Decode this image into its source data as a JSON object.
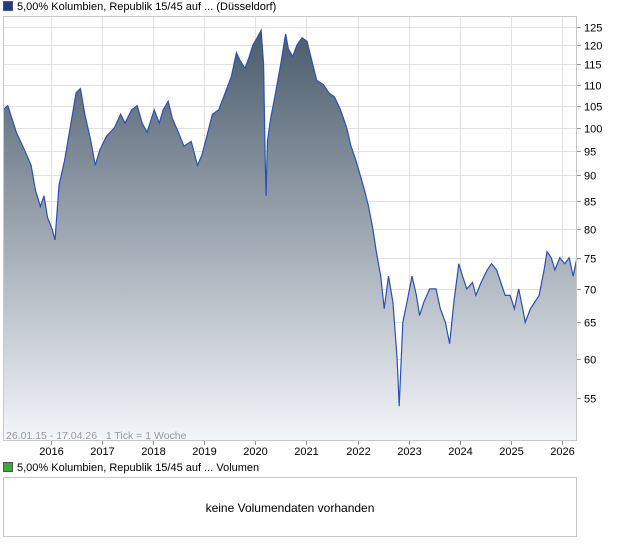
{
  "price_legend": {
    "label": "5,00% Kolumbien, Republik 15/45 auf ... (Düsseldorf)",
    "color": "#1f3b8a"
  },
  "volume_legend": {
    "label": "5,00% Kolumbien, Republik 15/45 auf ... Volumen",
    "color": "#3aa83a"
  },
  "volume_panel": {
    "message": "keine Volumendaten vorhanden"
  },
  "chart_data": {
    "type": "area",
    "series": [
      {
        "name": "5,00% Kolumbien, Republik 15/45 auf ... (Düsseldorf)",
        "line_color": "#2a50b8",
        "fill_top": "#4a5b6b",
        "fill_bottom": "#f4f6fa",
        "points": [
          [
            "2015-01-26",
            104
          ],
          [
            "2015-03-01",
            105
          ],
          [
            "2015-05-01",
            99
          ],
          [
            "2015-07-01",
            95
          ],
          [
            "2015-08-15",
            92
          ],
          [
            "2015-09-15",
            87
          ],
          [
            "2015-10-20",
            84
          ],
          [
            "2015-11-15",
            86
          ],
          [
            "2015-12-10",
            82
          ],
          [
            "2016-01-10",
            80
          ],
          [
            "2016-02-01",
            78
          ],
          [
            "2016-03-01",
            88
          ],
          [
            "2016-04-10",
            93
          ],
          [
            "2016-05-20",
            100
          ],
          [
            "2016-07-01",
            108
          ],
          [
            "2016-08-01",
            109
          ],
          [
            "2016-09-01",
            103
          ],
          [
            "2016-10-15",
            97
          ],
          [
            "2016-11-15",
            92
          ],
          [
            "2016-12-15",
            95
          ],
          [
            "2017-02-01",
            98
          ],
          [
            "2017-04-01",
            100
          ],
          [
            "2017-05-15",
            103
          ],
          [
            "2017-06-15",
            101
          ],
          [
            "2017-08-01",
            104
          ],
          [
            "2017-09-10",
            105
          ],
          [
            "2017-10-15",
            101
          ],
          [
            "2017-11-20",
            99
          ],
          [
            "2018-01-10",
            104
          ],
          [
            "2018-02-15",
            101
          ],
          [
            "2018-03-15",
            104
          ],
          [
            "2018-04-20",
            106
          ],
          [
            "2018-05-20",
            102
          ],
          [
            "2018-07-01",
            99
          ],
          [
            "2018-08-10",
            96
          ],
          [
            "2018-10-01",
            97
          ],
          [
            "2018-11-15",
            92
          ],
          [
            "2018-12-15",
            94
          ],
          [
            "2019-01-20",
            98
          ],
          [
            "2019-03-01",
            103
          ],
          [
            "2019-04-15",
            104
          ],
          [
            "2019-06-01",
            108
          ],
          [
            "2019-07-15",
            112
          ],
          [
            "2019-08-20",
            118
          ],
          [
            "2019-09-15",
            116
          ],
          [
            "2019-10-20",
            114
          ],
          [
            "2019-11-20",
            117
          ],
          [
            "2019-12-15",
            120
          ],
          [
            "2020-01-15",
            122
          ],
          [
            "2020-02-12",
            124
          ],
          [
            "2020-03-01",
            115
          ],
          [
            "2020-03-12",
            94
          ],
          [
            "2020-03-19",
            86
          ],
          [
            "2020-03-28",
            97
          ],
          [
            "2020-04-20",
            102
          ],
          [
            "2020-05-20",
            107
          ],
          [
            "2020-07-01",
            115
          ],
          [
            "2020-08-05",
            123
          ],
          [
            "2020-08-25",
            119
          ],
          [
            "2020-09-25",
            117
          ],
          [
            "2020-10-25",
            120
          ],
          [
            "2020-12-01",
            122
          ],
          [
            "2021-01-05",
            121
          ],
          [
            "2021-02-01",
            117
          ],
          [
            "2021-03-15",
            111
          ],
          [
            "2021-05-01",
            110
          ],
          [
            "2021-06-10",
            108
          ],
          [
            "2021-07-20",
            107
          ],
          [
            "2021-09-01",
            104
          ],
          [
            "2021-10-15",
            100
          ],
          [
            "2021-11-15",
            96
          ],
          [
            "2021-12-20",
            93
          ],
          [
            "2022-01-20",
            90
          ],
          [
            "2022-02-20",
            87
          ],
          [
            "2022-03-20",
            84
          ],
          [
            "2022-04-20",
            80
          ],
          [
            "2022-05-15",
            76
          ],
          [
            "2022-06-15",
            72
          ],
          [
            "2022-07-10",
            67
          ],
          [
            "2022-08-10",
            72
          ],
          [
            "2022-09-10",
            68
          ],
          [
            "2022-10-10",
            60
          ],
          [
            "2022-10-25",
            54
          ],
          [
            "2022-11-20",
            65
          ],
          [
            "2022-12-20",
            68
          ],
          [
            "2023-01-25",
            72
          ],
          [
            "2023-02-25",
            69
          ],
          [
            "2023-03-20",
            66
          ],
          [
            "2023-04-20",
            68
          ],
          [
            "2023-06-01",
            70
          ],
          [
            "2023-07-15",
            70
          ],
          [
            "2023-08-15",
            67
          ],
          [
            "2023-09-20",
            65
          ],
          [
            "2023-10-20",
            62
          ],
          [
            "2023-11-20",
            68
          ],
          [
            "2023-12-25",
            74
          ],
          [
            "2024-01-20",
            72
          ],
          [
            "2024-02-20",
            70
          ],
          [
            "2024-04-01",
            71
          ],
          [
            "2024-04-25",
            69
          ],
          [
            "2024-06-01",
            71
          ],
          [
            "2024-07-15",
            73
          ],
          [
            "2024-08-15",
            74
          ],
          [
            "2024-09-20",
            73
          ],
          [
            "2024-10-20",
            71
          ],
          [
            "2024-11-20",
            69
          ],
          [
            "2024-12-25",
            69
          ],
          [
            "2025-01-25",
            67
          ],
          [
            "2025-02-25",
            70
          ],
          [
            "2025-03-25",
            67
          ],
          [
            "2025-04-12",
            65
          ],
          [
            "2025-05-20",
            67
          ],
          [
            "2025-06-20",
            68
          ],
          [
            "2025-07-20",
            69
          ],
          [
            "2025-08-25",
            73
          ],
          [
            "2025-09-15",
            76
          ],
          [
            "2025-10-15",
            75
          ],
          [
            "2025-11-10",
            73
          ],
          [
            "2025-12-15",
            75
          ],
          [
            "2026-01-20",
            74
          ],
          [
            "2026-02-20",
            75
          ],
          [
            "2026-03-20",
            72
          ],
          [
            "2026-04-17",
            75
          ]
        ]
      }
    ],
    "x_range": [
      "2015-01-26",
      "2026-04-17"
    ],
    "x_ticks": [
      [
        "2016",
        "2016-01-01"
      ],
      [
        "2017",
        "2017-01-01"
      ],
      [
        "2018",
        "2018-01-01"
      ],
      [
        "2019",
        "2019-01-01"
      ],
      [
        "2020",
        "2020-01-01"
      ],
      [
        "2021",
        "2021-01-01"
      ],
      [
        "2022",
        "2022-01-01"
      ],
      [
        "2023",
        "2023-01-01"
      ],
      [
        "2024",
        "2024-01-01"
      ],
      [
        "2025",
        "2025-01-01"
      ],
      [
        "2026",
        "2026-01-01"
      ]
    ],
    "y_scale": "log",
    "ylim": [
      50,
      128
    ],
    "y_ticks": [
      55,
      60,
      65,
      70,
      75,
      80,
      85,
      90,
      95,
      100,
      105,
      110,
      115,
      120,
      125
    ],
    "y_axis_side": "right",
    "grid": true,
    "grid_color": "#e2e2e2",
    "annotation": "26.01.15 - 17.04.26   1 Tick = 1 Woche"
  }
}
